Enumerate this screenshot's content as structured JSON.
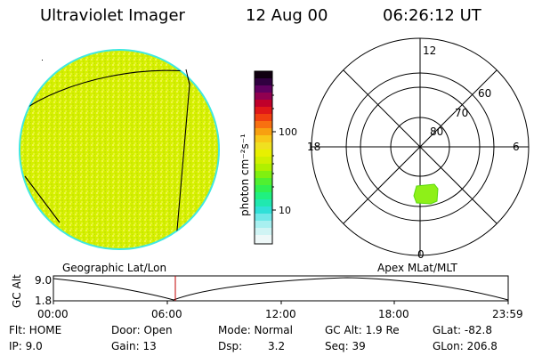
{
  "header": {
    "title": "Ultraviolet Imager",
    "date": "12 Aug 00",
    "time": "06:26:12 UT"
  },
  "colorbar": {
    "unit_label": "photon cm⁻²s⁻¹",
    "tick_100": "100",
    "tick_10": "10"
  },
  "polar": {
    "mlt_labels": {
      "top": "12",
      "left": "18",
      "right": "6",
      "bottom": "0"
    },
    "lat_labels": {
      "outer": "60",
      "mid": "70",
      "inner": "80"
    }
  },
  "panel_titles": {
    "left": "Geographic Lat/Lon",
    "right": "Apex MLat/MLT"
  },
  "orbit": {
    "ylabel": "GC Alt",
    "ytick_top": "9.0",
    "ytick_bottom": "1.8",
    "xticks": [
      "00:00",
      "06:00",
      "12:00",
      "18:00",
      "23:59"
    ]
  },
  "info": {
    "flt": "Flt: HOME",
    "ip": "IP:  9.0",
    "door": "Door: Open",
    "gain": "Gain: 13",
    "mode": "Mode: Normal",
    "dsp_label": "Dsp:",
    "dsp_value": "3.2",
    "gc_alt": "GC Alt: 1.9 Re",
    "seq": "Seq: 39",
    "glat": "GLat: -82.8",
    "glon": "GLon: 206.8"
  },
  "colors": {
    "disk_fill": "#d6f000",
    "disk_speckle": "#eef548",
    "disk_rim": "#40e8e0",
    "blob": "#8ef018",
    "marker": "#c00000"
  }
}
